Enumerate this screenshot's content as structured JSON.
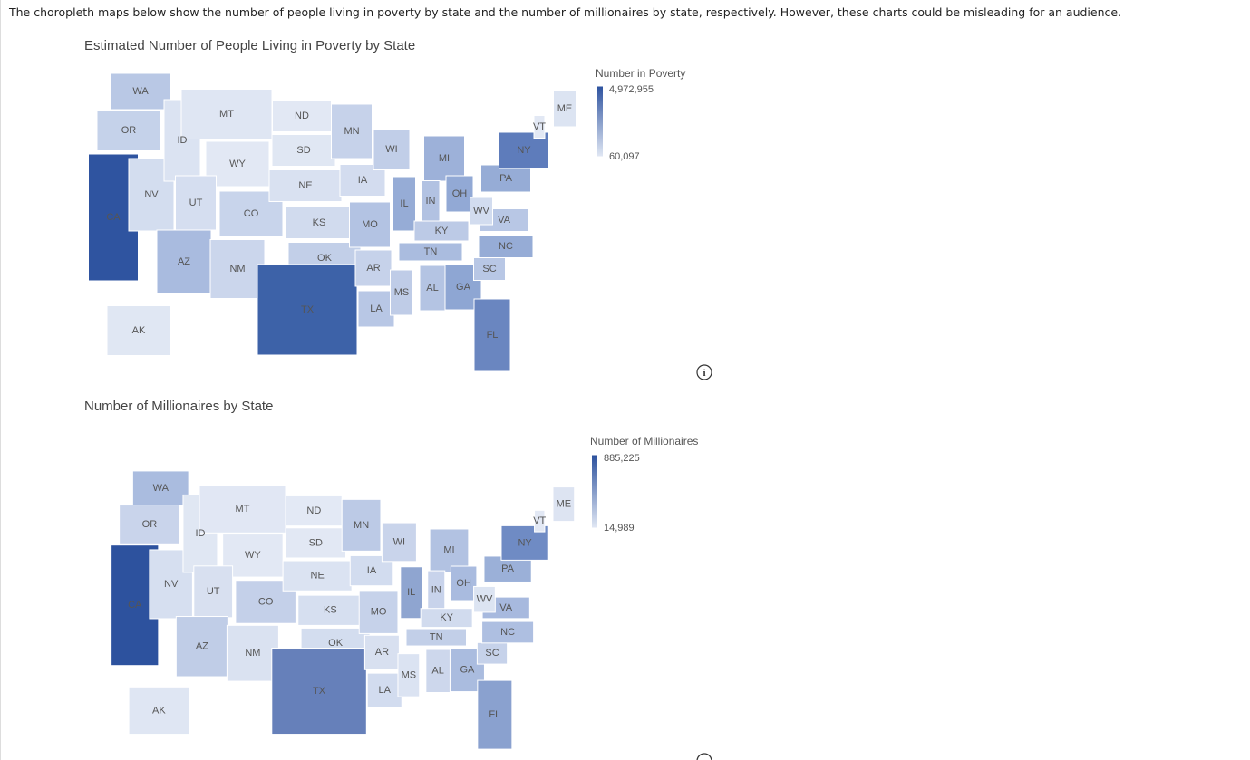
{
  "intro": "The choropleth maps below show the number of people living in poverty by state and the number of millionaires by state, respectively. However, these charts could be misleading for an audience.",
  "maps": [
    {
      "title": "Estimated Number of People Living in Poverty by State",
      "legend": {
        "title": "Number in Poverty",
        "max": {
          "value": 4972955,
          "label": "4,972,955"
        },
        "min": {
          "value": 60097,
          "label": "60,097"
        },
        "color_high": "#2f54a0",
        "color_low": "#dfe6f3"
      },
      "states": [
        {
          "label": "WA",
          "color": "#b9c8e5"
        },
        {
          "label": "OR",
          "color": "#c5d2ea"
        },
        {
          "label": "CA",
          "color": "#2f54a0"
        },
        {
          "label": "NV",
          "color": "#d3ddef"
        },
        {
          "label": "ID",
          "color": "#dbe3f2"
        },
        {
          "label": "MT",
          "color": "#dfe6f3"
        },
        {
          "label": "WY",
          "color": "#e2e8f4"
        },
        {
          "label": "UT",
          "color": "#d5def0"
        },
        {
          "label": "CO",
          "color": "#c8d4eb"
        },
        {
          "label": "AZ",
          "color": "#a9bbdf"
        },
        {
          "label": "NM",
          "color": "#cbd6ec"
        },
        {
          "label": "ND",
          "color": "#e2e8f4"
        },
        {
          "label": "SD",
          "color": "#e0e7f3"
        },
        {
          "label": "NE",
          "color": "#d9e1f1"
        },
        {
          "label": "KS",
          "color": "#d1dbee"
        },
        {
          "label": "OK",
          "color": "#c2cfe8"
        },
        {
          "label": "TX",
          "color": "#3d62a8"
        },
        {
          "label": "MN",
          "color": "#c6d2ea"
        },
        {
          "label": "IA",
          "color": "#d3dcef"
        },
        {
          "label": "MO",
          "color": "#b3c3e3"
        },
        {
          "label": "AR",
          "color": "#c6d2ea"
        },
        {
          "label": "LA",
          "color": "#b8c7e5"
        },
        {
          "label": "WI",
          "color": "#c1cee8"
        },
        {
          "label": "IL",
          "color": "#96acd6"
        },
        {
          "label": "MI",
          "color": "#9db1d9"
        },
        {
          "label": "IN",
          "color": "#b2c2e2"
        },
        {
          "label": "OH",
          "color": "#92a9d5"
        },
        {
          "label": "KY",
          "color": "#bccae6"
        },
        {
          "label": "TN",
          "color": "#aabcdf"
        },
        {
          "label": "MS",
          "color": "#bfcce7"
        },
        {
          "label": "AL",
          "color": "#b4c4e3"
        },
        {
          "label": "GA",
          "color": "#8ea6d3"
        },
        {
          "label": "FL",
          "color": "#6a86c0"
        },
        {
          "label": "SC",
          "color": "#b8c7e5"
        },
        {
          "label": "NC",
          "color": "#96acd6"
        },
        {
          "label": "VA",
          "color": "#b8c7e5"
        },
        {
          "label": "WV",
          "color": "#d2dcef"
        },
        {
          "label": "PA",
          "color": "#96acd6"
        },
        {
          "label": "NY",
          "color": "#5e7cbb"
        },
        {
          "label": "VT",
          "color": "#e2e8f4"
        },
        {
          "label": "ME",
          "color": "#dce4f2"
        },
        {
          "label": "AK",
          "color": "#e0e7f3"
        }
      ]
    },
    {
      "title": "Number of Millionaires by State",
      "legend": {
        "title": "Number of Millionaires",
        "max": {
          "value": 885225,
          "label": "885,225"
        },
        "min": {
          "value": 14989,
          "label": "14,989"
        },
        "color_high": "#2d529e",
        "color_low": "#dfe6f3"
      },
      "states": [
        {
          "label": "WA",
          "color": "#aabcdf"
        },
        {
          "label": "OR",
          "color": "#c9d4eb"
        },
        {
          "label": "CA",
          "color": "#2d529e"
        },
        {
          "label": "NV",
          "color": "#d6dff0"
        },
        {
          "label": "ID",
          "color": "#e0e7f3"
        },
        {
          "label": "MT",
          "color": "#e1e7f4"
        },
        {
          "label": "WY",
          "color": "#e2e8f4"
        },
        {
          "label": "UT",
          "color": "#d8e0f0"
        },
        {
          "label": "CO",
          "color": "#c4d0e9"
        },
        {
          "label": "AZ",
          "color": "#c0cde7"
        },
        {
          "label": "NM",
          "color": "#dae2f1"
        },
        {
          "label": "ND",
          "color": "#e3e9f5"
        },
        {
          "label": "SD",
          "color": "#e2e8f4"
        },
        {
          "label": "NE",
          "color": "#dbe3f2"
        },
        {
          "label": "KS",
          "color": "#d6dff0"
        },
        {
          "label": "OK",
          "color": "#d3ddef"
        },
        {
          "label": "TX",
          "color": "#6680ba"
        },
        {
          "label": "MN",
          "color": "#bccae6"
        },
        {
          "label": "IA",
          "color": "#d2dcef"
        },
        {
          "label": "MO",
          "color": "#c6d2ea"
        },
        {
          "label": "AR",
          "color": "#d8e0f0"
        },
        {
          "label": "LA",
          "color": "#d2dcef"
        },
        {
          "label": "WI",
          "color": "#c9d4eb"
        },
        {
          "label": "IL",
          "color": "#8fa5d0"
        },
        {
          "label": "MI",
          "color": "#b2c2e2"
        },
        {
          "label": "IN",
          "color": "#c8d3eb"
        },
        {
          "label": "OH",
          "color": "#a9bbdf"
        },
        {
          "label": "KY",
          "color": "#d1dbee"
        },
        {
          "label": "TN",
          "color": "#c2cfe8"
        },
        {
          "label": "MS",
          "color": "#dbe3f2"
        },
        {
          "label": "AL",
          "color": "#cdd7ec"
        },
        {
          "label": "GA",
          "color": "#aabcdf"
        },
        {
          "label": "FL",
          "color": "#8aa1cf"
        },
        {
          "label": "SC",
          "color": "#c6d2ea"
        },
        {
          "label": "NC",
          "color": "#aebfe1"
        },
        {
          "label": "VA",
          "color": "#a7b9de"
        },
        {
          "label": "WV",
          "color": "#dce4f2"
        },
        {
          "label": "PA",
          "color": "#9bb0d8"
        },
        {
          "label": "NY",
          "color": "#6f8bc4"
        },
        {
          "label": "VT",
          "color": "#e2e8f4"
        },
        {
          "label": "ME",
          "color": "#dde4f2"
        },
        {
          "label": "AK",
          "color": "#dfe6f3"
        }
      ]
    }
  ]
}
